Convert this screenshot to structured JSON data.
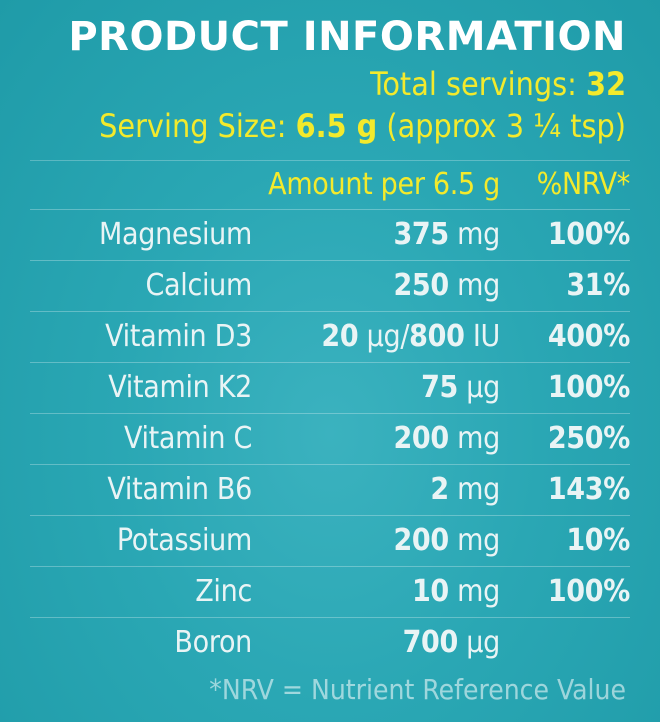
{
  "header": {
    "title": "PRODUCT INFORMATION",
    "servings_label": "Total servings: ",
    "servings_value": "32",
    "serving_size_label": "Serving Size: ",
    "serving_size_value": "6.5 g",
    "serving_size_note": " (approx 3 ¼ tsp)"
  },
  "table": {
    "header_amount": "Amount per 6.5 g",
    "header_nrv": "%NRV*",
    "rows": [
      {
        "name": "Magnesium",
        "value": "375",
        "unit": " mg",
        "nrv": "100%"
      },
      {
        "name": "Calcium",
        "value": "250",
        "unit": " mg",
        "nrv": "31%"
      },
      {
        "name": "Vitamin D3",
        "value": "20",
        "unit": " µg/",
        "value2": "800",
        "unit2": " IU",
        "nrv": "400%"
      },
      {
        "name": "Vitamin K2",
        "value": "75",
        "unit": " µg",
        "nrv": "100%"
      },
      {
        "name": "Vitamin C",
        "value": "200",
        "unit": " mg",
        "nrv": "250%"
      },
      {
        "name": "Vitamin B6",
        "value": "2",
        "unit": " mg",
        "nrv": "143%"
      },
      {
        "name": "Potassium",
        "value": "200",
        "unit": " mg",
        "nrv": "10%"
      },
      {
        "name": "Zinc",
        "value": "10",
        "unit": " mg",
        "nrv": "100%"
      },
      {
        "name": "Boron",
        "value": "700",
        "unit": " µg",
        "nrv": ""
      }
    ]
  },
  "footnote": "*NRV = Nutrient Reference Value",
  "colors": {
    "background": "#2aa7b4",
    "accent_yellow": "#f3ea2c",
    "text": "#e9f4f5",
    "title": "#ffffff"
  }
}
